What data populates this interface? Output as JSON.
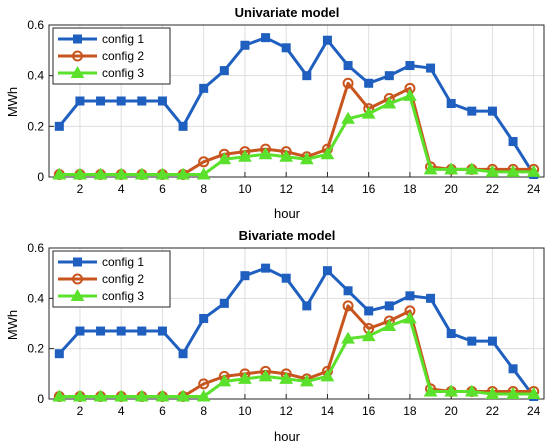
{
  "chart_data": [
    {
      "type": "line",
      "title": "Univariate model",
      "xlabel": "hour",
      "ylabel": "MWh",
      "xlim": [
        0.5,
        24.5
      ],
      "ylim": [
        0,
        0.6
      ],
      "xticks": [
        "2",
        "4",
        "6",
        "8",
        "10",
        "12",
        "14",
        "16",
        "18",
        "20",
        "22",
        "24"
      ],
      "yticks": [
        "0",
        "0.2",
        "0.4",
        "0.6"
      ],
      "grid": true,
      "legend_position": "top-left",
      "x": [
        1,
        2,
        3,
        4,
        5,
        6,
        7,
        8,
        9,
        10,
        11,
        12,
        13,
        14,
        15,
        16,
        17,
        18,
        19,
        20,
        21,
        22,
        23,
        24
      ],
      "series": [
        {
          "name": "config 1",
          "color": "#1F5FBF",
          "marker": "square",
          "values": [
            0.2,
            0.3,
            0.3,
            0.3,
            0.3,
            0.3,
            0.2,
            0.35,
            0.42,
            0.52,
            0.55,
            0.51,
            0.4,
            0.54,
            0.44,
            0.37,
            0.4,
            0.44,
            0.43,
            0.29,
            0.26,
            0.26,
            0.14,
            0.01
          ]
        },
        {
          "name": "config 2",
          "color": "#C8551E",
          "marker": "circle",
          "values": [
            0.01,
            0.01,
            0.01,
            0.01,
            0.01,
            0.01,
            0.01,
            0.06,
            0.09,
            0.1,
            0.11,
            0.1,
            0.08,
            0.11,
            0.37,
            0.27,
            0.31,
            0.35,
            0.04,
            0.03,
            0.03,
            0.03,
            0.03,
            0.03
          ]
        },
        {
          "name": "config 3",
          "color": "#5BE02B",
          "marker": "triangle",
          "values": [
            0.01,
            0.01,
            0.01,
            0.01,
            0.01,
            0.01,
            0.01,
            0.01,
            0.07,
            0.08,
            0.09,
            0.08,
            0.07,
            0.09,
            0.23,
            0.25,
            0.29,
            0.32,
            0.03,
            0.03,
            0.03,
            0.02,
            0.02,
            0.02
          ]
        }
      ]
    },
    {
      "type": "line",
      "title": "Bivariate model",
      "xlabel": "hour",
      "ylabel": "MWh",
      "xlim": [
        0.5,
        24.5
      ],
      "ylim": [
        0,
        0.6
      ],
      "xticks": [
        "2",
        "4",
        "6",
        "8",
        "10",
        "12",
        "14",
        "16",
        "18",
        "20",
        "22",
        "24"
      ],
      "yticks": [
        "0",
        "0.2",
        "0.4",
        "0.6"
      ],
      "grid": true,
      "legend_position": "top-left",
      "x": [
        1,
        2,
        3,
        4,
        5,
        6,
        7,
        8,
        9,
        10,
        11,
        12,
        13,
        14,
        15,
        16,
        17,
        18,
        19,
        20,
        21,
        22,
        23,
        24
      ],
      "series": [
        {
          "name": "config 1",
          "color": "#1F5FBF",
          "marker": "square",
          "values": [
            0.18,
            0.27,
            0.27,
            0.27,
            0.27,
            0.27,
            0.18,
            0.32,
            0.38,
            0.49,
            0.52,
            0.48,
            0.37,
            0.51,
            0.43,
            0.35,
            0.37,
            0.41,
            0.4,
            0.26,
            0.23,
            0.23,
            0.12,
            0.01
          ]
        },
        {
          "name": "config 2",
          "color": "#C8551E",
          "marker": "circle",
          "values": [
            0.01,
            0.01,
            0.01,
            0.01,
            0.01,
            0.01,
            0.01,
            0.06,
            0.09,
            0.1,
            0.11,
            0.1,
            0.08,
            0.11,
            0.37,
            0.28,
            0.31,
            0.35,
            0.04,
            0.03,
            0.03,
            0.03,
            0.03,
            0.03
          ]
        },
        {
          "name": "config 3",
          "color": "#5BE02B",
          "marker": "triangle",
          "values": [
            0.01,
            0.01,
            0.01,
            0.01,
            0.01,
            0.01,
            0.01,
            0.01,
            0.07,
            0.08,
            0.09,
            0.08,
            0.07,
            0.09,
            0.24,
            0.25,
            0.29,
            0.32,
            0.03,
            0.03,
            0.03,
            0.02,
            0.02,
            0.02
          ]
        }
      ]
    }
  ]
}
